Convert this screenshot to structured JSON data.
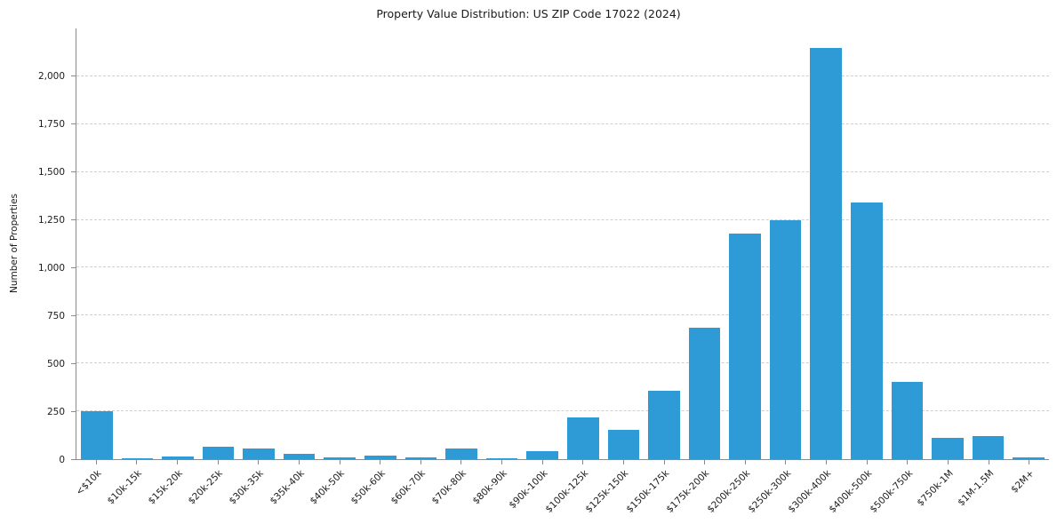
{
  "chart_data": {
    "type": "bar",
    "title": "Property Value Distribution: US ZIP Code 17022 (2024)",
    "xlabel": "",
    "ylabel": "Number of Properties",
    "categories": [
      "<$10k",
      "$10k-15k",
      "$15k-20k",
      "$20k-25k",
      "$30k-35k",
      "$35k-40k",
      "$40k-50k",
      "$50k-60k",
      "$60k-70k",
      "$70k-80k",
      "$80k-90k",
      "$90k-100k",
      "$100k-125k",
      "$125k-150k",
      "$150k-175k",
      "$175k-200k",
      "$200k-250k",
      "$250k-300k",
      "$300k-400k",
      "$400k-500k",
      "$500k-750k",
      "$750k-1M",
      "$1M-1.5M",
      "$2M+"
    ],
    "values": [
      250,
      5,
      12,
      65,
      55,
      28,
      8,
      18,
      8,
      55,
      7,
      40,
      220,
      155,
      355,
      688,
      1178,
      1250,
      2150,
      1340,
      405,
      110,
      120,
      8
    ],
    "ylim": [
      0,
      2250
    ],
    "yticks": [
      0,
      250,
      500,
      750,
      1000,
      1250,
      1500,
      1750,
      2000
    ],
    "grid": "horizontal-dashed",
    "legend": "none",
    "bar_color": "#2e9bd6",
    "grid_color": "#cfcfcf",
    "axis_color": "#8a8a8a"
  }
}
